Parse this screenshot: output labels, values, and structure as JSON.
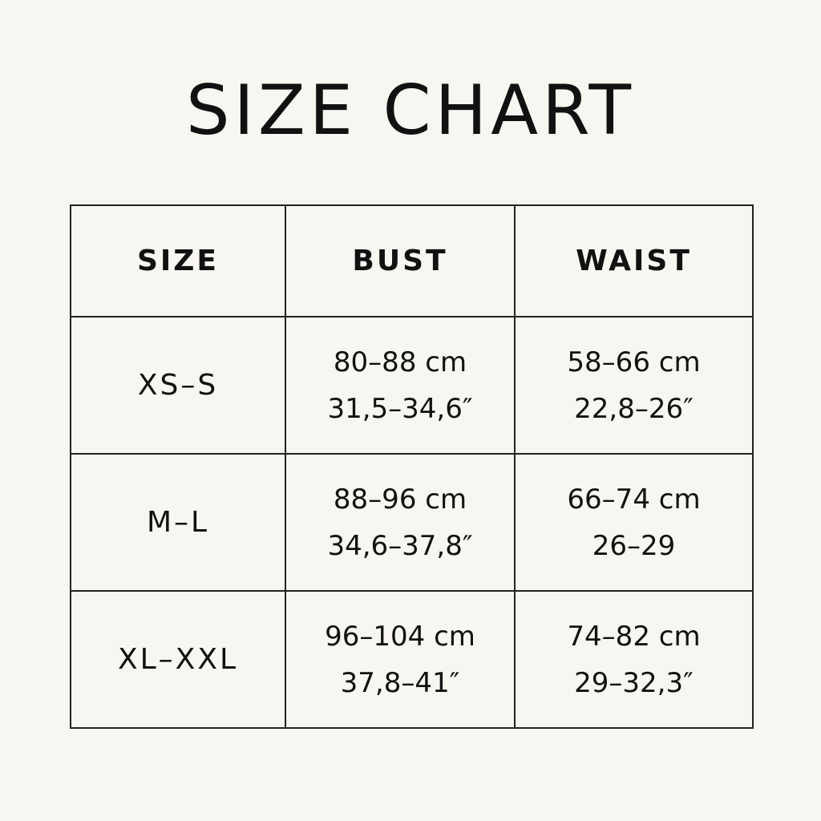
{
  "title": "SIZE CHART",
  "table": {
    "headers": [
      "SIZE",
      "BUST",
      "WAIST"
    ],
    "rows": [
      {
        "size": "XS–S",
        "bust_cm": "80–88 cm",
        "bust_in": "31,5–34,6″",
        "waist_cm": "58–66 cm",
        "waist_in": "22,8–26″"
      },
      {
        "size": "M–L",
        "bust_cm": "88–96 cm",
        "bust_in": "34,6–37,8″",
        "waist_cm": "66–74 cm",
        "waist_in": "26–29"
      },
      {
        "size": "XL–XXL",
        "bust_cm": "96–104 cm",
        "bust_in": "37,8–41″",
        "waist_cm": "74–82 cm",
        "waist_in": "29–32,3″"
      }
    ]
  }
}
